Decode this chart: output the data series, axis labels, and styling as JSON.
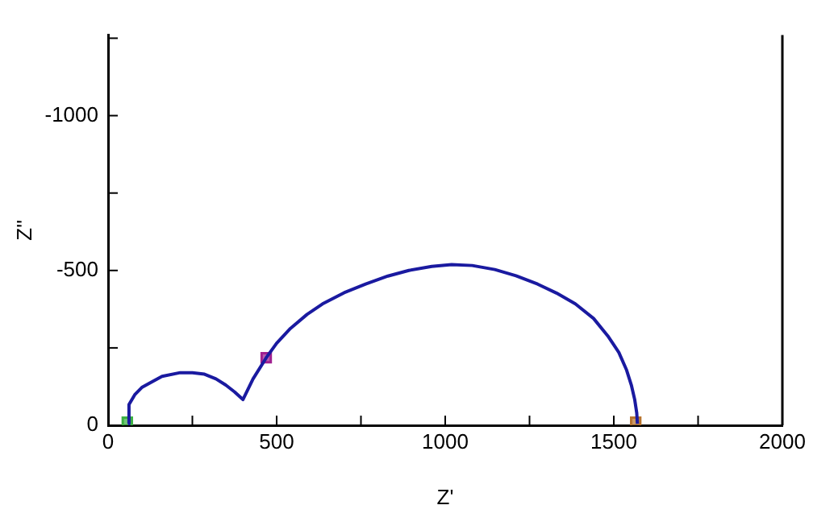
{
  "chart_data": {
    "type": "line",
    "xlabel": "Z'",
    "ylabel": "Z''",
    "xlim": [
      0,
      2000
    ],
    "ylim": [
      0,
      -1260
    ],
    "xticks": [
      0,
      {
        "value": 250,
        "label": null
      },
      500,
      {
        "value": 750,
        "label": null
      },
      1000,
      {
        "value": 1250,
        "label": null
      },
      1500,
      {
        "value": 1750,
        "label": null
      },
      2000
    ],
    "yticks": [
      0,
      {
        "value": -250,
        "label": null
      },
      -500,
      {
        "value": -750,
        "label": null
      },
      -1000,
      {
        "value": -1250,
        "label": null
      }
    ],
    "grid": false,
    "legend": false,
    "marker": "none",
    "line_style": "solid",
    "series": [
      {
        "color": "#1a1aa0",
        "x": [
          59,
          62,
          80,
          100,
          126,
          160,
          214,
          250,
          286,
          320,
          349,
          375,
          400,
          430,
          469,
          500,
          541,
          590,
          636,
          700,
          764,
          830,
          892,
          960,
          1019,
          1080,
          1147,
          1210,
          1274,
          1330,
          1386,
          1440,
          1482,
          1515,
          1538,
          1552,
          1562,
          1568,
          1570
        ],
        "values": [
          -5,
          -67,
          -100,
          -122,
          -138,
          -158,
          -170,
          -170,
          -165,
          -150,
          -130,
          -108,
          -83,
          -150,
          -218,
          -265,
          -313,
          -358,
          -392,
          -428,
          -456,
          -482,
          -500,
          -513,
          -519,
          -516,
          -503,
          -483,
          -456,
          -427,
          -392,
          -345,
          -289,
          -235,
          -178,
          -130,
          -83,
          -40,
          -5
        ]
      },
      {
        "type": "scatter",
        "color": "#3cb043",
        "marker": "square",
        "x": [
          57
        ],
        "values": [
          -10
        ]
      },
      {
        "type": "scatter",
        "color": "#a02090",
        "marker": "square",
        "x": [
          469
        ],
        "values": [
          -218
        ]
      },
      {
        "type": "scatter",
        "color": "#b8742e",
        "marker": "square",
        "x": [
          1565
        ],
        "values": [
          -10
        ]
      }
    ]
  }
}
